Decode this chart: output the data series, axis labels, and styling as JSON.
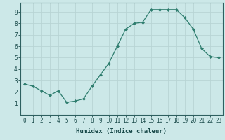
{
  "x": [
    0,
    1,
    2,
    3,
    4,
    5,
    6,
    7,
    8,
    9,
    10,
    11,
    12,
    13,
    14,
    15,
    16,
    17,
    18,
    19,
    20,
    21,
    22,
    23
  ],
  "y": [
    2.7,
    2.5,
    2.1,
    1.7,
    2.1,
    1.1,
    1.2,
    1.4,
    2.5,
    3.5,
    4.5,
    6.0,
    7.5,
    8.0,
    8.1,
    9.2,
    9.2,
    9.2,
    9.2,
    8.5,
    7.5,
    5.8,
    5.1,
    5.0
  ],
  "line_color": "#2e7d6e",
  "marker": "D",
  "marker_size": 2.0,
  "bg_color": "#cce8e8",
  "grid_color": "#b8d4d4",
  "xlabel": "Humidex (Indice chaleur)",
  "xlim": [
    -0.5,
    23.5
  ],
  "ylim": [
    0,
    9.8
  ],
  "yticks": [
    1,
    2,
    3,
    4,
    5,
    6,
    7,
    8,
    9
  ],
  "xticks": [
    0,
    1,
    2,
    3,
    4,
    5,
    6,
    7,
    8,
    9,
    10,
    11,
    12,
    13,
    14,
    15,
    16,
    17,
    18,
    19,
    20,
    21,
    22,
    23
  ],
  "tick_color": "#1a4a4a",
  "xlabel_color": "#1a4a4a",
  "font_family": "monospace",
  "tick_fontsize": 5.5,
  "xlabel_fontsize": 6.5
}
